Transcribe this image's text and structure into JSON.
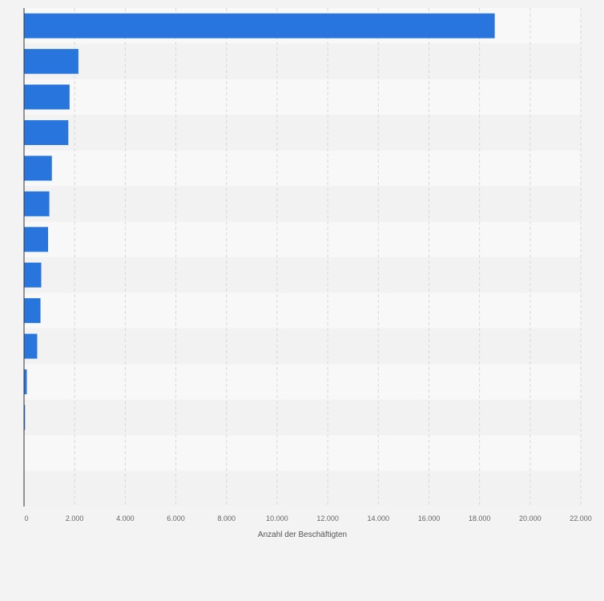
{
  "chart_data": {
    "type": "bar",
    "orientation": "horizontal",
    "title": "",
    "xlabel": "Anzahl der Beschäftigten",
    "ylabel": "",
    "categories": [
      "",
      "",
      "",
      "",
      "",
      "",
      "",
      "",
      "",
      "",
      "",
      "",
      "",
      ""
    ],
    "values": [
      18600,
      2150,
      1800,
      1750,
      1100,
      1000,
      950,
      680,
      650,
      520,
      110,
      40,
      0,
      0
    ],
    "xlim": [
      0,
      22000
    ],
    "xticks": [
      0,
      2000,
      4000,
      6000,
      8000,
      10000,
      12000,
      14000,
      16000,
      18000,
      20000,
      22000
    ],
    "xtick_labels": [
      "0",
      "2.000",
      "4.000",
      "6.000",
      "8.000",
      "10.000",
      "12.000",
      "14.000",
      "16.000",
      "18.000",
      "20.000",
      "22.000"
    ],
    "grid": true,
    "legend": "none",
    "colors": {
      "bar": "#2876dd",
      "band_light": "#f8f8f8",
      "band_dark": "#f2f2f2",
      "grid": "#d9d9d9",
      "axis": "#333333"
    }
  }
}
